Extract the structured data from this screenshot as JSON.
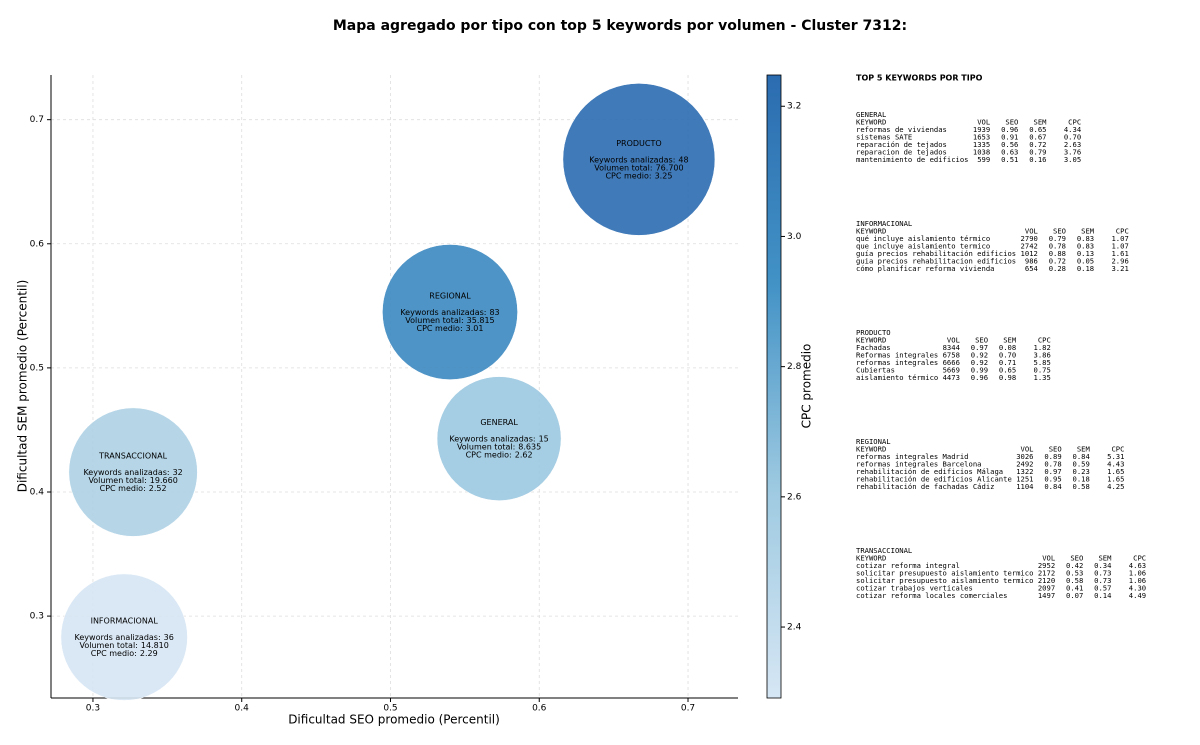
{
  "chart_data": {
    "type": "bubble",
    "title": "Mapa agregado por tipo con top 5 keywords por volumen - Cluster 7312:",
    "xlabel": "Dificultad SEO promedio (Percentil)",
    "ylabel": "Dificultad SEM promedio (Percentil)",
    "colorbar_label": "CPC promedio",
    "xlim": [
      0.2718,
      0.7336
    ],
    "ylim": [
      0.234,
      0.736
    ],
    "xticks": [
      0.3,
      0.4,
      0.5,
      0.6,
      0.7
    ],
    "yticks": [
      0.3,
      0.4,
      0.5,
      0.6,
      0.7
    ],
    "clim": [
      2.291,
      3.248
    ],
    "cticks": [
      2.4,
      2.6,
      2.8,
      {
        "value": 3.0,
        "label": "3.0"
      },
      3.2
    ],
    "grid": true,
    "colormap": [
      "#d6e6f4",
      "#9ecae1",
      "#4292c6",
      "#2b6cb0"
    ],
    "categories": [
      "PRODUCTO",
      "REGIONAL",
      "GENERAL",
      "TRANSACCIONAL",
      "INFORMACIONAL"
    ],
    "x": [
      0.667,
      0.54,
      0.573,
      0.327,
      0.321
    ],
    "y": [
      0.668,
      0.545,
      0.443,
      0.416,
      0.283
    ],
    "keywords": [
      48,
      83,
      15,
      32,
      36
    ],
    "volume": {
      "values": [
        76700,
        35815,
        8635,
        19660,
        14810
      ],
      "value_labels": [
        "76.700",
        "35.815",
        "8.635",
        "19.660",
        "14.810"
      ]
    },
    "cpc": [
      3.25,
      3.01,
      2.62,
      2.52,
      2.29
    ],
    "annotation_labels": {
      "keywords": "Keywords analizadas:",
      "volume": "Volumen total:",
      "cpc": "CPC medio:"
    }
  },
  "keyword_tables": {
    "title": "TOP 5 KEYWORDS POR TIPO",
    "columns": [
      "KEYWORD",
      "VOL",
      "SEO",
      "SEM",
      "CPC"
    ],
    "groups": [
      {
        "name": "GENERAL",
        "rows": [
          [
            "reformas de viviendas",
            "1939",
            "0.96",
            "0.65",
            "4.34"
          ],
          [
            "sistemas SATE",
            "1653",
            "0.91",
            "0.67",
            "0.70"
          ],
          [
            "reparación de tejados",
            "1335",
            "0.56",
            "0.72",
            "2.63"
          ],
          [
            "reparacion de tejados",
            "1038",
            "0.63",
            "0.79",
            "3.76"
          ],
          [
            "mantenimiento de edificios",
            "599",
            "0.51",
            "0.16",
            "3.05"
          ]
        ]
      },
      {
        "name": "INFORMACIONAL",
        "rows": [
          [
            "qué incluye aislamiento térmico",
            "2790",
            "0.79",
            "0.83",
            "1.07"
          ],
          [
            "que incluye aislamiento termico",
            "2742",
            "0.78",
            "0.83",
            "1.07"
          ],
          [
            "guía precios rehabilitación edificios",
            "1012",
            "0.88",
            "0.13",
            "1.61"
          ],
          [
            "guia precios rehabilitacion edificios",
            "986",
            "0.72",
            "0.05",
            "2.96"
          ],
          [
            "cómo planificar reforma vivienda",
            "654",
            "0.28",
            "0.18",
            "3.21"
          ]
        ]
      },
      {
        "name": "PRODUCTO",
        "rows": [
          [
            "Fachadas",
            "8344",
            "0.97",
            "0.08",
            "1.82"
          ],
          [
            "Reformas integrales",
            "6758",
            "0.92",
            "0.70",
            "3.86"
          ],
          [
            "reformas integrales",
            "6666",
            "0.92",
            "0.71",
            "5.85"
          ],
          [
            "Cubiertas",
            "5669",
            "0.99",
            "0.65",
            "0.75"
          ],
          [
            "aislamiento térmico",
            "4473",
            "0.96",
            "0.98",
            "1.35"
          ]
        ]
      },
      {
        "name": "REGIONAL",
        "rows": [
          [
            "reformas integrales Madrid",
            "3026",
            "0.89",
            "0.84",
            "5.31"
          ],
          [
            "reformas integrales Barcelona",
            "2492",
            "0.78",
            "0.59",
            "4.43"
          ],
          [
            "rehabilitación de edificios Málaga",
            "1322",
            "0.97",
            "0.23",
            "1.65"
          ],
          [
            "rehabilitación de edificios Alicante",
            "1251",
            "0.95",
            "0.18",
            "1.65"
          ],
          [
            "rehabilitación de fachadas Cádiz",
            "1104",
            "0.84",
            "0.58",
            "4.25"
          ]
        ]
      },
      {
        "name": "TRANSACCIONAL",
        "rows": [
          [
            "cotizar reforma integral",
            "2952",
            "0.42",
            "0.34",
            "4.63"
          ],
          [
            "solicitar presupuesto aislamiento termico",
            "2172",
            "0.53",
            "0.73",
            "1.06"
          ],
          [
            "solicitar presupuesto aislamiento termico",
            "2120",
            "0.58",
            "0.73",
            "1.06"
          ],
          [
            "cotizar trabajos verticales",
            "2097",
            "0.41",
            "0.57",
            "4.30"
          ],
          [
            "cotizar reforma locales comerciales",
            "1497",
            "0.07",
            "0.14",
            "4.49"
          ]
        ]
      }
    ]
  }
}
